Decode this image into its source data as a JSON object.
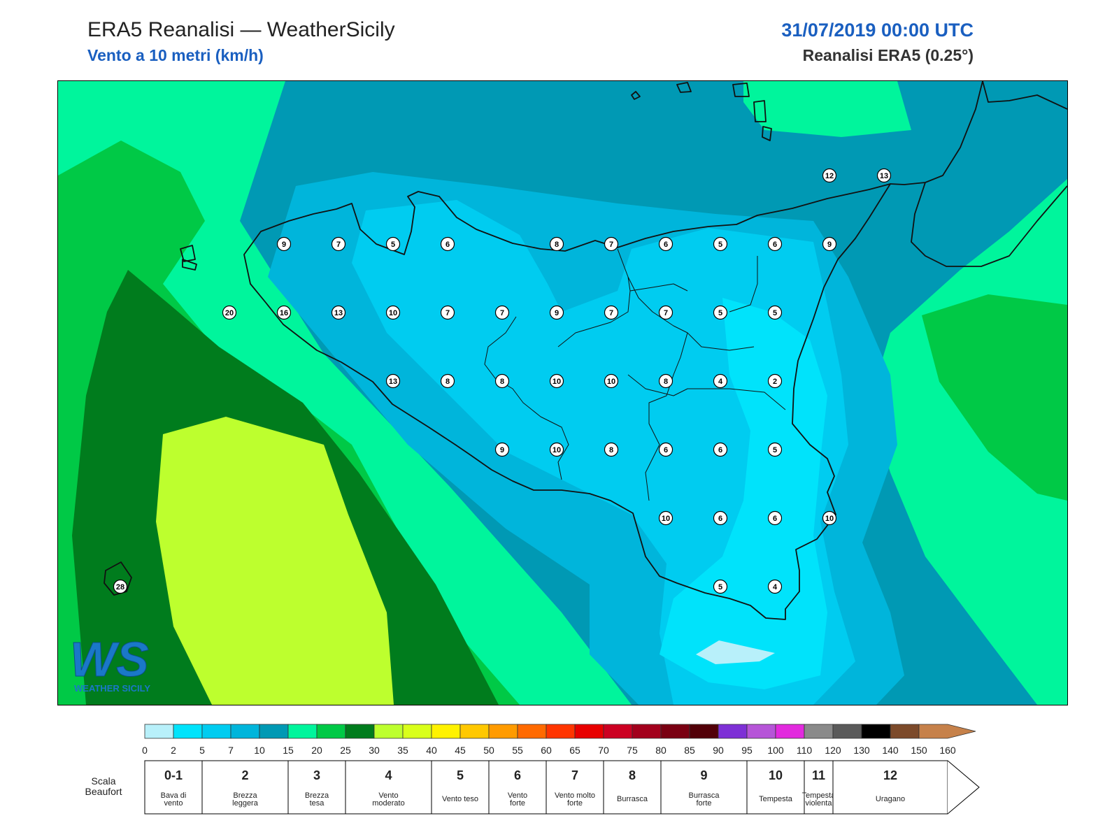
{
  "header": {
    "title": "ERA5 Reanalisi — WeatherSicily",
    "subtitle": "Vento a 10 metri (km/h)",
    "datetime": "31/07/2019 00:00 UTC",
    "dataset": "Reanalisi ERA5 (0.25°)"
  },
  "logo": {
    "letters": "WS",
    "text": "WEATHER SICILY"
  },
  "colors": {
    "c0": "#b8f0fa",
    "c2": "#00e3fb",
    "c5": "#00ccf0",
    "c7": "#00b5db",
    "c10": "#0099b4",
    "c15": "#00f59c",
    "c20": "#00c946",
    "c25": "#007c1d",
    "c30": "#bdff2e",
    "coast": "#111111"
  },
  "wind_points": [
    {
      "label": "9",
      "lon": 12.2,
      "lat": 38.35
    },
    {
      "label": "7",
      "lon": 12.7,
      "lat": 38.35
    },
    {
      "label": "5",
      "lon": 13.2,
      "lat": 38.35
    },
    {
      "label": "6",
      "lon": 13.7,
      "lat": 38.35
    },
    {
      "label": "8",
      "lon": 14.7,
      "lat": 38.35
    },
    {
      "label": "7",
      "lon": 15.2,
      "lat": 38.35
    },
    {
      "label": "6",
      "lon": 15.7,
      "lat": 38.35
    },
    {
      "label": "5",
      "lon": 16.2,
      "lat": 38.35
    },
    {
      "label": "6",
      "lon": 16.7,
      "lat": 38.35
    },
    {
      "label": "9",
      "lon": 17.2,
      "lat": 38.35
    },
    {
      "label": "20",
      "lon": 11.7,
      "lat": 37.85
    },
    {
      "label": "16",
      "lon": 12.2,
      "lat": 37.85
    },
    {
      "label": "13",
      "lon": 12.7,
      "lat": 37.85
    },
    {
      "label": "10",
      "lon": 13.2,
      "lat": 37.85
    },
    {
      "label": "7",
      "lon": 13.7,
      "lat": 37.85
    },
    {
      "label": "7",
      "lon": 14.2,
      "lat": 37.85
    },
    {
      "label": "9",
      "lon": 14.7,
      "lat": 37.85
    },
    {
      "label": "7",
      "lon": 15.2,
      "lat": 37.85
    },
    {
      "label": "7",
      "lon": 15.7,
      "lat": 37.85
    },
    {
      "label": "5",
      "lon": 16.2,
      "lat": 37.85
    },
    {
      "label": "5",
      "lon": 16.7,
      "lat": 37.85
    },
    {
      "label": "13",
      "lon": 13.2,
      "lat": 37.35
    },
    {
      "label": "8",
      "lon": 13.7,
      "lat": 37.35
    },
    {
      "label": "8",
      "lon": 14.2,
      "lat": 37.35
    },
    {
      "label": "10",
      "lon": 14.7,
      "lat": 37.35
    },
    {
      "label": "10",
      "lon": 15.2,
      "lat": 37.35
    },
    {
      "label": "8",
      "lon": 15.7,
      "lat": 37.35
    },
    {
      "label": "4",
      "lon": 16.2,
      "lat": 37.35
    },
    {
      "label": "2",
      "lon": 16.7,
      "lat": 37.35
    },
    {
      "label": "9",
      "lon": 14.2,
      "lat": 36.85
    },
    {
      "label": "10",
      "lon": 14.7,
      "lat": 36.85
    },
    {
      "label": "8",
      "lon": 15.2,
      "lat": 36.85
    },
    {
      "label": "6",
      "lon": 15.7,
      "lat": 36.85
    },
    {
      "label": "6",
      "lon": 16.2,
      "lat": 36.85
    },
    {
      "label": "5",
      "lon": 16.7,
      "lat": 36.85
    },
    {
      "label": "10",
      "lon": 15.7,
      "lat": 36.35
    },
    {
      "label": "6",
      "lon": 16.2,
      "lat": 36.35
    },
    {
      "label": "6",
      "lon": 16.7,
      "lat": 36.35
    },
    {
      "label": "10",
      "lon": 17.2,
      "lat": 36.35
    },
    {
      "label": "28",
      "lon": 10.7,
      "lat": 35.85
    },
    {
      "label": "5",
      "lon": 16.2,
      "lat": 35.85
    },
    {
      "label": "4",
      "lon": 16.7,
      "lat": 35.85
    },
    {
      "label": "12",
      "lon": 17.2,
      "lat": 38.85
    },
    {
      "label": "13",
      "lon": 17.7,
      "lat": 38.85
    }
  ],
  "colorbar": {
    "colors": [
      "#b8f0fa",
      "#00e3fb",
      "#00ccf0",
      "#00b5db",
      "#0099b4",
      "#00f59c",
      "#00c946",
      "#007c1d",
      "#bdff2e",
      "#d9ff1a",
      "#fff200",
      "#ffc800",
      "#ff9b00",
      "#ff6a00",
      "#ff3500",
      "#e80000",
      "#cc0022",
      "#a3001c",
      "#7a0012",
      "#520008",
      "#7e30d6",
      "#b655d8",
      "#e22ade",
      "#8a8a8a",
      "#5a5a5a",
      "#000000",
      "#7c4a2a",
      "#c6814a"
    ],
    "ticks": [
      "0",
      "2",
      "5",
      "7",
      "10",
      "15",
      "20",
      "25",
      "30",
      "35",
      "40",
      "45",
      "50",
      "55",
      "60",
      "65",
      "70",
      "75",
      "80",
      "85",
      "90",
      "95",
      "100",
      "110",
      "120",
      "130",
      "140",
      "150",
      "160"
    ]
  },
  "beaufort": {
    "title_line1": "Scala",
    "title_line2": "Beaufort",
    "classes": [
      {
        "num": "0-1",
        "line1": "Bava di",
        "line2": "vento",
        "from": 0,
        "to": 2
      },
      {
        "num": "2",
        "line1": "Brezza",
        "line2": "leggera",
        "from": 2,
        "to": 5
      },
      {
        "num": "3",
        "line1": "Brezza",
        "line2": "tesa",
        "from": 5,
        "to": 7
      },
      {
        "num": "4",
        "line1": "Vento",
        "line2": "moderato",
        "from": 7,
        "to": 10
      },
      {
        "num": "5",
        "line1": "Vento teso",
        "line2": "",
        "from": 10,
        "to": 12
      },
      {
        "num": "6",
        "line1": "Vento",
        "line2": "forte",
        "from": 12,
        "to": 14
      },
      {
        "num": "7",
        "line1": "Vento molto",
        "line2": "forte",
        "from": 14,
        "to": 16
      },
      {
        "num": "8",
        "line1": "Burrasca",
        "line2": "",
        "from": 16,
        "to": 18
      },
      {
        "num": "9",
        "line1": "Burrasca",
        "line2": "forte",
        "from": 18,
        "to": 21
      },
      {
        "num": "10",
        "line1": "Tempesta",
        "line2": "",
        "from": 21,
        "to": 23
      },
      {
        "num": "11",
        "line1": "Tempesta",
        "line2": "violenta",
        "from": 23,
        "to": 24
      },
      {
        "num": "12",
        "line1": "Uragano",
        "line2": "",
        "from": 24,
        "to": 28
      }
    ]
  }
}
